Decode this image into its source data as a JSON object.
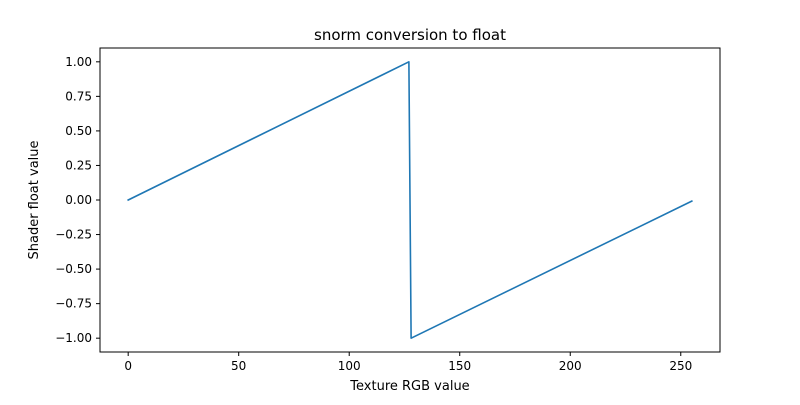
{
  "chart_data": {
    "type": "line",
    "title": "snorm conversion to float",
    "xlabel": "Texture RGB value",
    "ylabel": "Shader float value",
    "xlim": [
      -12.75,
      267.75
    ],
    "ylim": [
      -1.1,
      1.1
    ],
    "xticks": [
      0,
      50,
      100,
      150,
      200,
      250
    ],
    "xtick_labels": [
      "0",
      "50",
      "100",
      "150",
      "200",
      "250"
    ],
    "yticks": [
      -1.0,
      -0.75,
      -0.5,
      -0.25,
      0.0,
      0.25,
      0.5,
      0.75,
      1.0
    ],
    "ytick_labels": [
      "−1.00",
      "−0.75",
      "−0.50",
      "−0.25",
      "0.00",
      "0.25",
      "0.50",
      "0.75",
      "1.00"
    ],
    "grid": false,
    "series": [
      {
        "color": "#1f77b4",
        "x": [
          0,
          127,
          128,
          255
        ],
        "y": [
          0.0,
          1.0,
          -1.0,
          -0.0079
        ]
      }
    ]
  }
}
